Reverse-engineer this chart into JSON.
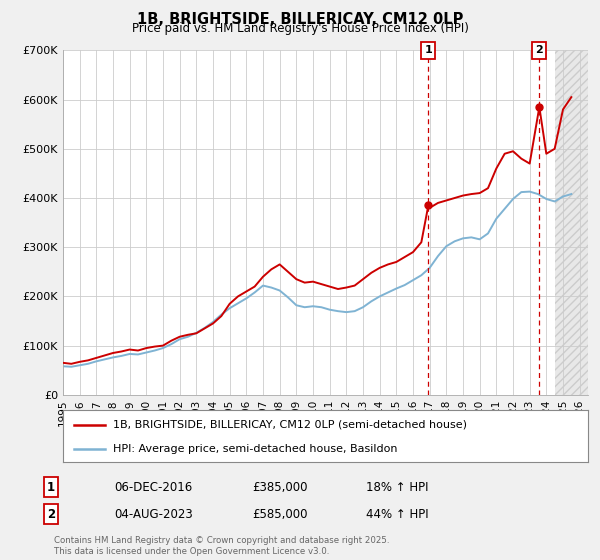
{
  "title": "1B, BRIGHTSIDE, BILLERICAY, CM12 0LP",
  "subtitle": "Price paid vs. HM Land Registry's House Price Index (HPI)",
  "ylim": [
    0,
    700000
  ],
  "yticks": [
    0,
    100000,
    200000,
    300000,
    400000,
    500000,
    600000,
    700000
  ],
  "ytick_labels": [
    "£0",
    "£100K",
    "£200K",
    "£300K",
    "£400K",
    "£500K",
    "£600K",
    "£700K"
  ],
  "xlim_start": 1995.0,
  "xlim_end": 2026.5,
  "xticks": [
    1995,
    1996,
    1997,
    1998,
    1999,
    2000,
    2001,
    2002,
    2003,
    2004,
    2005,
    2006,
    2007,
    2008,
    2009,
    2010,
    2011,
    2012,
    2013,
    2014,
    2015,
    2016,
    2017,
    2018,
    2019,
    2020,
    2021,
    2022,
    2023,
    2024,
    2025,
    2026
  ],
  "price_line_color": "#cc0000",
  "hpi_line_color": "#7fb3d3",
  "marker1_date": 2016.92,
  "marker1_value": 385000,
  "marker1_label": "1",
  "marker2_date": 2023.58,
  "marker2_value": 585000,
  "marker2_label": "2",
  "annotation1_date": "06-DEC-2016",
  "annotation1_price": "£385,000",
  "annotation1_hpi": "18% ↑ HPI",
  "annotation2_date": "04-AUG-2023",
  "annotation2_price": "£585,000",
  "annotation2_hpi": "44% ↑ HPI",
  "legend_line1": "1B, BRIGHTSIDE, BILLERICAY, CM12 0LP (semi-detached house)",
  "legend_line2": "HPI: Average price, semi-detached house, Basildon",
  "footer": "Contains HM Land Registry data © Crown copyright and database right 2025.\nThis data is licensed under the Open Government Licence v3.0.",
  "background_color": "#f0f0f0",
  "plot_bg_color": "#ffffff",
  "grid_color": "#cccccc",
  "hatch_color": "#dddddd"
}
